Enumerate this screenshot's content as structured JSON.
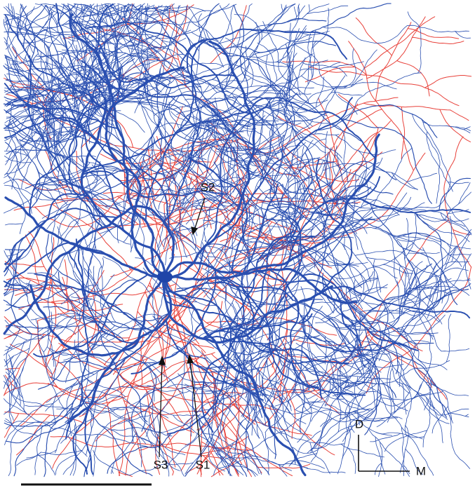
{
  "annotations": [
    {
      "text": "S2"
    },
    {
      "text": "S3"
    },
    {
      "text": "S1"
    }
  ],
  "orientation": {
    "dorsal": "D",
    "medial": "M"
  }
}
